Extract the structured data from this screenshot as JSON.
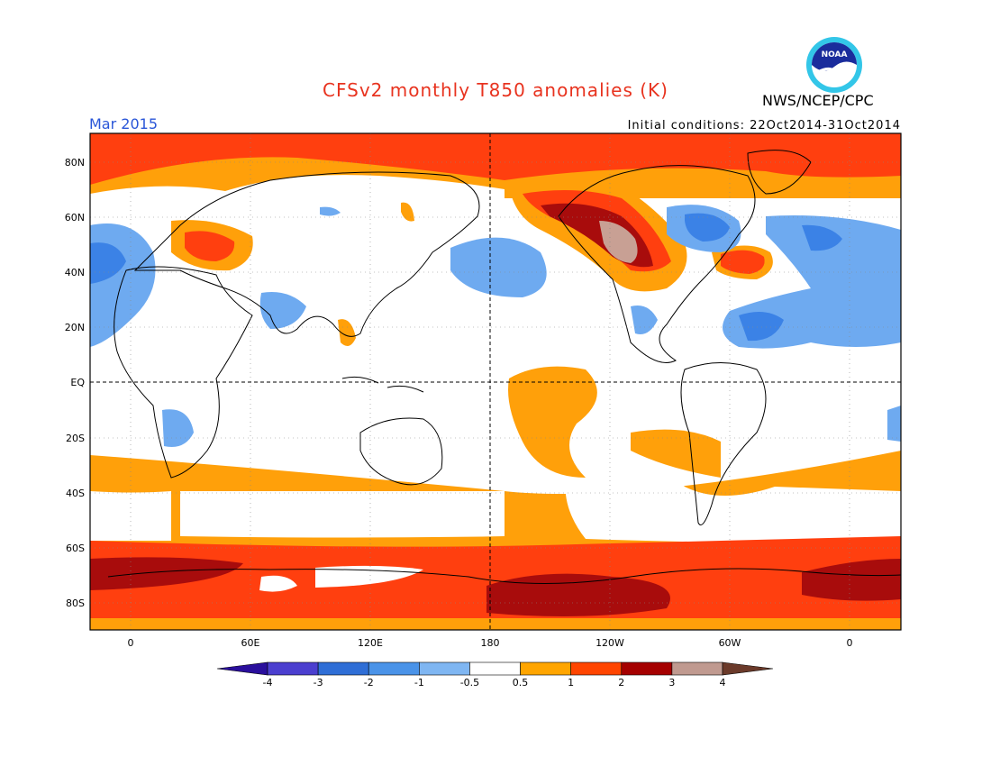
{
  "title": "CFSv2 monthly T850 anomalies (K)",
  "agency": "NWS/NCEP/CPC",
  "logo_text": "NOAA",
  "month": "Mar 2015",
  "initial_conditions": "Initial conditions: 22Oct2014-31Oct2014",
  "lat_labels": [
    "80N",
    "60N",
    "40N",
    "20N",
    "EQ",
    "20S",
    "40S",
    "60S",
    "80S"
  ],
  "lon_labels": [
    "0",
    "60E",
    "120E",
    "180",
    "120W",
    "60W",
    "0"
  ],
  "colorbar": {
    "labels": [
      "-4",
      "-3",
      "-2",
      "-1",
      "-0.5",
      "0.5",
      "1",
      "2",
      "3",
      "4"
    ],
    "colors": [
      "#2a0f9c",
      "#4b3fcf",
      "#2f6ed6",
      "#4a93e8",
      "#7fb6f2",
      "#ffffff",
      "#ffa500",
      "#ff4500",
      "#a50000",
      "#c09a90",
      "#6b3a2a"
    ]
  },
  "colors": {
    "title": "#e8331f",
    "month": "#2a56d8",
    "orange": "#ffa00a",
    "red": "#ff3f0f",
    "darkred": "#a80c0c",
    "pink": "#c8a094",
    "lightblue": "#6eaaf0",
    "blue": "#3b82e6"
  }
}
